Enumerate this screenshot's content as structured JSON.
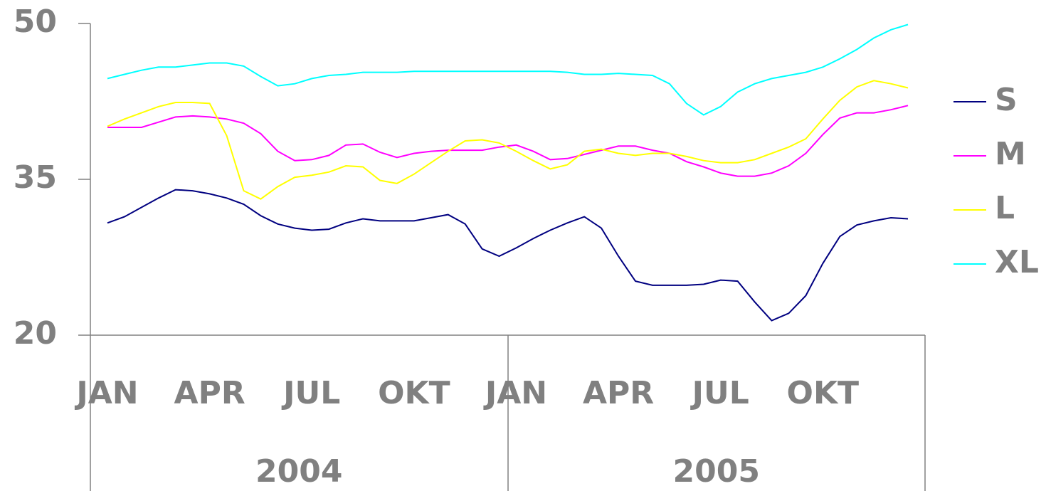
{
  "chart_data": {
    "type": "line",
    "categories": [
      "JAN",
      null,
      null,
      null,
      null,
      null,
      "APR",
      null,
      null,
      null,
      null,
      null,
      "JUL",
      null,
      null,
      null,
      null,
      null,
      "OKT",
      null,
      null,
      null,
      null,
      null,
      "JAN",
      null,
      null,
      null,
      null,
      null,
      "APR",
      null,
      null,
      null,
      null,
      null,
      "JUL",
      null,
      null,
      null,
      null,
      null,
      "OKT",
      null,
      null,
      null,
      null,
      null
    ],
    "year_groups": [
      "2004",
      "2005"
    ],
    "ylim": [
      20,
      50
    ],
    "yticks": [
      20,
      35,
      50
    ],
    "legend": "right",
    "series": [
      {
        "name": "S",
        "color": "#000080",
        "values": [
          30.8,
          31.4,
          32.3,
          33.2,
          34.0,
          33.9,
          33.6,
          33.2,
          32.6,
          31.5,
          30.7,
          30.3,
          30.1,
          30.2,
          30.8,
          31.2,
          31.0,
          31.0,
          31.0,
          31.3,
          31.6,
          30.7,
          28.3,
          27.6,
          28.4,
          29.3,
          30.1,
          30.8,
          31.4,
          30.3,
          27.6,
          25.2,
          24.8,
          24.8,
          24.8,
          24.9,
          25.3,
          25.2,
          23.2,
          21.4,
          22.1,
          23.8,
          26.9,
          29.5,
          30.6,
          31.0,
          31.3,
          31.2
        ]
      },
      {
        "name": "M",
        "color": "#ff00ff",
        "values": [
          40.0,
          40.0,
          40.0,
          40.5,
          41.0,
          41.1,
          41.0,
          40.8,
          40.4,
          39.4,
          37.7,
          36.8,
          36.9,
          37.3,
          38.3,
          38.4,
          37.6,
          37.1,
          37.5,
          37.7,
          37.8,
          37.8,
          37.8,
          38.1,
          38.3,
          37.7,
          36.9,
          37.0,
          37.4,
          37.8,
          38.2,
          38.2,
          37.8,
          37.5,
          36.7,
          36.2,
          35.6,
          35.3,
          35.3,
          35.6,
          36.3,
          37.5,
          39.3,
          40.9,
          41.4,
          41.4,
          41.7,
          42.1
        ]
      },
      {
        "name": "L",
        "color": "#ffff00",
        "values": [
          40.1,
          40.8,
          41.4,
          42.0,
          42.4,
          42.4,
          42.3,
          39.2,
          33.9,
          33.1,
          34.3,
          35.2,
          35.4,
          35.7,
          36.3,
          36.2,
          34.9,
          34.6,
          35.5,
          36.6,
          37.7,
          38.7,
          38.8,
          38.5,
          37.7,
          36.8,
          36.0,
          36.4,
          37.7,
          37.9,
          37.5,
          37.3,
          37.5,
          37.5,
          37.2,
          36.8,
          36.6,
          36.6,
          36.9,
          37.5,
          38.1,
          38.9,
          40.8,
          42.6,
          43.9,
          44.5,
          44.2,
          43.8
        ]
      },
      {
        "name": "XL",
        "color": "#00ffff",
        "values": [
          44.7,
          45.1,
          45.5,
          45.8,
          45.8,
          46.0,
          46.2,
          46.2,
          45.9,
          44.9,
          44.0,
          44.2,
          44.7,
          45.0,
          45.1,
          45.3,
          45.3,
          45.3,
          45.4,
          45.4,
          45.4,
          45.4,
          45.4,
          45.4,
          45.4,
          45.4,
          45.4,
          45.3,
          45.1,
          45.1,
          45.2,
          45.1,
          45.0,
          44.2,
          42.3,
          41.2,
          42.0,
          43.4,
          44.2,
          44.7,
          45.0,
          45.3,
          45.8,
          46.6,
          47.5,
          48.6,
          49.4,
          49.9
        ]
      }
    ]
  }
}
